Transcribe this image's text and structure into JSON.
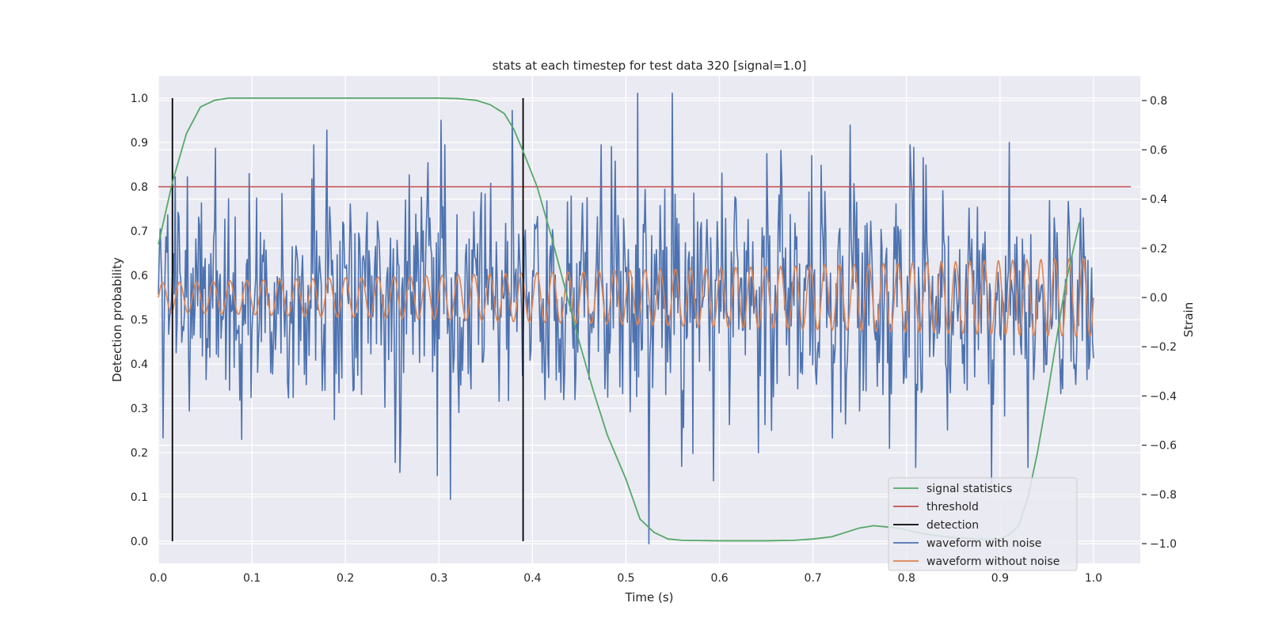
{
  "chart_data": {
    "type": "line",
    "title": "stats at each timestep for test data 320 [signal=1.0]",
    "xlabel": "Time (s)",
    "ylabel": "Detection probability",
    "ylabel_right": "Strain",
    "xlim": [
      0.0,
      1.05
    ],
    "ylim": [
      -0.05,
      1.05
    ],
    "ylim_right": [
      -1.08,
      0.9
    ],
    "x_ticks": [
      "0.0",
      "0.1",
      "0.2",
      "0.3",
      "0.4",
      "0.5",
      "0.6",
      "0.7",
      "0.8",
      "0.9",
      "1.0"
    ],
    "y_ticks": [
      "0.0",
      "0.1",
      "0.2",
      "0.3",
      "0.4",
      "0.5",
      "0.6",
      "0.7",
      "0.8",
      "0.9",
      "1.0"
    ],
    "y_ticks_right": [
      "−1.0",
      "−0.8",
      "−0.6",
      "−0.4",
      "−0.2",
      "0.0",
      "0.2",
      "0.4",
      "0.6",
      "0.8"
    ],
    "grid": true,
    "legend_position": "bottom-right",
    "series": [
      {
        "name": "signal statistics",
        "axis": "left",
        "color": "#55a868",
        "x": [
          0.0,
          0.015,
          0.03,
          0.045,
          0.06,
          0.075,
          0.09,
          0.12,
          0.15,
          0.2,
          0.25,
          0.3,
          0.32,
          0.34,
          0.355,
          0.37,
          0.38,
          0.39,
          0.405,
          0.42,
          0.435,
          0.45,
          0.465,
          0.48,
          0.5,
          0.515,
          0.53,
          0.545,
          0.56,
          0.6,
          0.65,
          0.68,
          0.7,
          0.72,
          0.735,
          0.75,
          0.765,
          0.78,
          0.795,
          0.81,
          0.83,
          0.85,
          0.87,
          0.885,
          0.9,
          0.91,
          0.92,
          0.93,
          0.94,
          0.95,
          0.96,
          0.97,
          0.985
        ],
        "y": [
          0.67,
          0.81,
          0.92,
          0.98,
          0.995,
          1.0,
          1.0,
          1.0,
          1.0,
          1.0,
          1.0,
          1.0,
          0.999,
          0.995,
          0.985,
          0.965,
          0.93,
          0.88,
          0.8,
          0.69,
          0.57,
          0.45,
          0.34,
          0.24,
          0.14,
          0.05,
          0.02,
          0.005,
          0.002,
          0.001,
          0.001,
          0.002,
          0.005,
          0.01,
          0.02,
          0.03,
          0.035,
          0.032,
          0.028,
          0.02,
          0.013,
          0.008,
          0.006,
          0.004,
          0.005,
          0.015,
          0.035,
          0.1,
          0.2,
          0.32,
          0.45,
          0.58,
          0.72
        ]
      },
      {
        "name": "threshold",
        "axis": "left",
        "color": "#c44e52",
        "x": [
          0.0,
          1.04
        ],
        "y": [
          0.8,
          0.8
        ]
      },
      {
        "name": "detection",
        "axis": "left",
        "color": "#000000",
        "x": [
          0.015,
          0.39
        ],
        "y_range": [
          0.0,
          1.0
        ]
      },
      {
        "name": "waveform with noise",
        "axis": "right",
        "color": "#4c72b0",
        "x_range": [
          0.0,
          1.0
        ],
        "points": 1000,
        "y_sample_outliers": [
          {
            "x": 0.005,
            "y": -0.57
          },
          {
            "x": 0.018,
            "y": 0.49
          },
          {
            "x": 0.031,
            "y": 0.49
          },
          {
            "x": 0.18,
            "y": 0.68
          },
          {
            "x": 0.253,
            "y": -0.67
          },
          {
            "x": 0.302,
            "y": 0.72
          },
          {
            "x": 0.312,
            "y": -0.82
          },
          {
            "x": 0.378,
            "y": 0.76
          },
          {
            "x": 0.513,
            "y": 0.83
          },
          {
            "x": 0.525,
            "y": -1.0
          },
          {
            "x": 0.55,
            "y": 0.83
          },
          {
            "x": 0.74,
            "y": 0.7
          },
          {
            "x": 0.81,
            "y": -0.69
          },
          {
            "x": 0.91,
            "y": 0.63
          },
          {
            "x": 0.93,
            "y": -0.69
          }
        ]
      },
      {
        "name": "waveform without noise",
        "axis": "right",
        "color": "#dd8452",
        "x_range": [
          0.0,
          1.0
        ],
        "cycles": 55,
        "amplitude_start": 0.06,
        "amplitude_end": 0.16
      }
    ]
  }
}
